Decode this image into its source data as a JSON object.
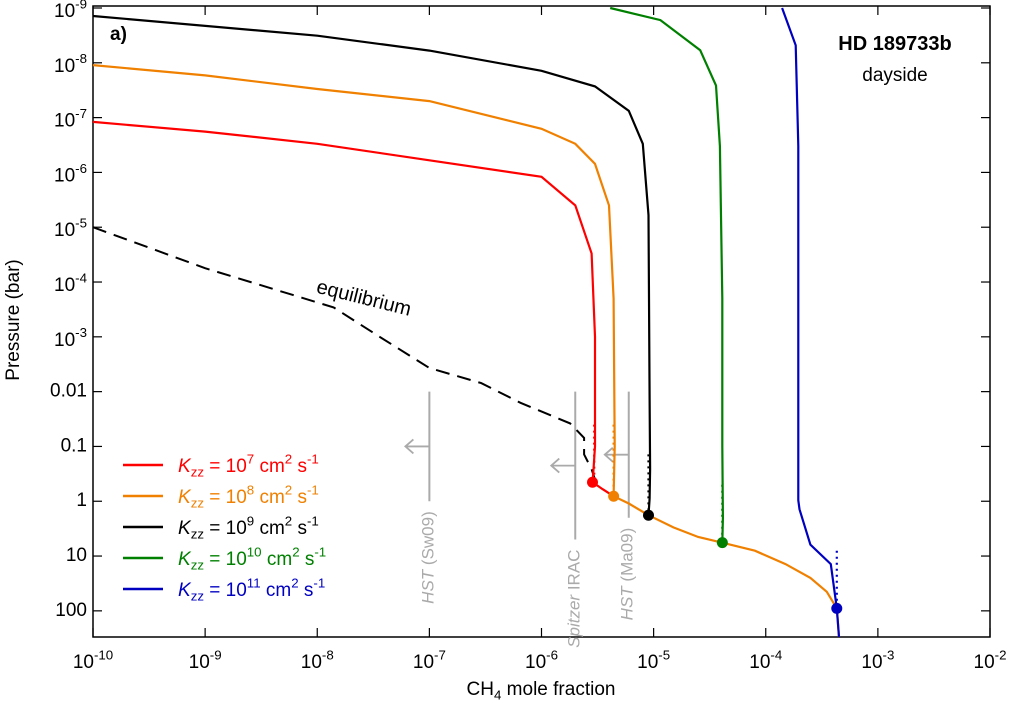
{
  "chart_data": {
    "type": "line",
    "title": "HD 189733b",
    "subtitle": "dayside",
    "panel_label": "a)",
    "xlabel": "CH_{4} mole fraction",
    "ylabel": "Pressure (bar)",
    "xscale": "log",
    "yscale": "log",
    "y_inverted": true,
    "xlim": [
      1e-10,
      0.01
    ],
    "ylim": [
      1e-09,
      300
    ],
    "xticks": [
      {
        "value": 1e-10,
        "label": "10^{-10}"
      },
      {
        "value": 1e-09,
        "label": "10^{-9}"
      },
      {
        "value": 1e-08,
        "label": "10^{-8}"
      },
      {
        "value": 1e-07,
        "label": "10^{-7}"
      },
      {
        "value": 1e-06,
        "label": "10^{-6}"
      },
      {
        "value": 1e-05,
        "label": "10^{-5}"
      },
      {
        "value": 0.0001,
        "label": "10^{-4}"
      },
      {
        "value": 0.001,
        "label": "10^{-3}"
      },
      {
        "value": 0.01,
        "label": "10^{-2}"
      }
    ],
    "yticks": [
      {
        "value": 1e-09,
        "label": "10^{-9}"
      },
      {
        "value": 1e-08,
        "label": "10^{-8}"
      },
      {
        "value": 1e-07,
        "label": "10^{-7}"
      },
      {
        "value": 1e-06,
        "label": "10^{-6}"
      },
      {
        "value": 1e-05,
        "label": "10^{-5}"
      },
      {
        "value": 0.0001,
        "label": "10^{-4}"
      },
      {
        "value": 0.001,
        "label": "10^{-3}"
      },
      0.01,
      0.1,
      1,
      10,
      100
    ],
    "legend": "lower left",
    "series": [
      {
        "name": "*K*_{zz} = 10^{7} cm^{2} s^{-1}",
        "color": "#ff0000",
        "x": [
          1e-10,
          1e-09,
          1e-08,
          1e-07,
          1e-06,
          2e-06,
          2.8e-06,
          3e-06,
          3e-06,
          2.9e-06,
          2.85e-06,
          3.5e-06,
          4.4e-06
        ],
        "values": [
          1.2e-07,
          1.8e-07,
          3e-07,
          6e-07,
          1.2e-06,
          4e-06,
          3e-05,
          0.001,
          0.1,
          0.3,
          0.45,
          0.6,
          0.81
        ],
        "quench": {
          "x": [
            2.95e-06,
            2.95e-06
          ],
          "values": [
            0.04,
            0.4
          ]
        },
        "dot": {
          "x": 2.85e-06,
          "value": 0.45
        }
      },
      {
        "name": "*K*_{zz} = 10^{8} cm^{2} s^{-1}",
        "color": "#f08000",
        "x": [
          1e-10,
          1e-09,
          1e-08,
          1e-07,
          1e-06,
          2e-06,
          3e-06,
          4e-06,
          4.4e-06,
          4.5e-06,
          4.4e-06,
          6e-06,
          9e-06,
          1.5e-05,
          2.5e-05,
          4.1e-05,
          8e-05,
          0.00015,
          0.00025,
          0.00035,
          0.00043,
          0.00045
        ],
        "values": [
          1.1e-08,
          1.7e-08,
          3e-08,
          5e-08,
          1.6e-07,
          3e-07,
          7e-07,
          4e-06,
          0.0002,
          0.1,
          0.81,
          1.1,
          1.8,
          3,
          4.5,
          5.7,
          8,
          14,
          25,
          45,
          90,
          300
        ],
        "quench": {
          "x": [
            4.4e-06,
            4.4e-06
          ],
          "values": [
            0.04,
            0.7
          ]
        },
        "dot": {
          "x": 4.4e-06,
          "value": 0.81
        }
      },
      {
        "name": "*K*_{zz} = 10^{9} cm^{2} s^{-1}",
        "color": "#000000",
        "x": [
          1e-10,
          1e-08,
          1e-07,
          1e-06,
          3e-06,
          6e-06,
          8e-06,
          9e-06,
          9.2e-06,
          9.3e-06,
          9.2e-06,
          9e-06
        ],
        "values": [
          1.4e-09,
          3.2e-09,
          6e-09,
          1.4e-08,
          2.7e-08,
          7.5e-08,
          3e-07,
          6e-06,
          0.013,
          0.26,
          0.9,
          1.8
        ],
        "quench": {
          "x": [
            9e-06,
            9e-06
          ],
          "values": [
            0.14,
            1.7
          ]
        },
        "dot": {
          "x": 9e-06,
          "value": 1.8
        }
      },
      {
        "name": "*K*_{zz} = 10^{10} cm^{2} s^{-1}",
        "color": "#008000",
        "x": [
          4.1e-06,
          1.15e-05,
          2.6e-05,
          3.6e-05,
          3.9e-05,
          4.1e-05,
          4.1e-05,
          4.15e-05,
          4.1e-05
        ],
        "values": [
          1e-09,
          1.66e-09,
          5.9e-09,
          2.6e-08,
          3.3e-07,
          0.0002,
          0.1,
          2,
          5.7
        ],
        "quench": {
          "x": [
            4.1e-05,
            4.1e-05
          ],
          "values": [
            0.5,
            5.7
          ]
        },
        "dot": {
          "x": 4.1e-05,
          "value": 5.7
        }
      },
      {
        "name": "*K*_{zz} = 10^{11} cm^{2} s^{-1}",
        "color": "#0000c0",
        "x": [
          0.00014,
          0.000185,
          0.000195,
          0.000195,
          0.0002,
          0.00025,
          0.00038,
          0.00043,
          0.00045
        ],
        "values": [
          1e-09,
          4.8e-09,
          3.3e-07,
          0.96,
          1.4,
          6.2,
          14,
          90,
          300
        ],
        "quench": {
          "x": [
            0.00043,
            0.00043
          ],
          "values": [
            8,
            90
          ]
        },
        "dot": {
          "x": 0.00043,
          "value": 90
        }
      }
    ],
    "equilibrium": {
      "name": "equilibrium",
      "color": "#000000",
      "x": [
        1e-10,
        1e-09,
        1.4e-08,
        3.6e-08,
        1e-07,
        2.9e-07,
        6.5e-07,
        1.8e-06,
        2.4e-06,
        2.4e-06,
        2.8e-06,
        3e-06
      ],
      "values": [
        1e-05,
        5.6e-05,
        0.00029,
        0.001,
        0.0037,
        0.007,
        0.016,
        0.038,
        0.07,
        0.14,
        0.26,
        0.4
      ]
    },
    "observations": [
      {
        "label": "*HST* (Sw09)",
        "x": 1e-07,
        "p_range": [
          0.01,
          1
        ]
      },
      {
        "label": "*Spitzer* IRAC",
        "x": 2e-06,
        "p_range": [
          0.01,
          5
        ]
      },
      {
        "label": "*HST* (Ma09)",
        "x": 6e-06,
        "p_range": [
          0.01,
          2
        ]
      }
    ]
  }
}
